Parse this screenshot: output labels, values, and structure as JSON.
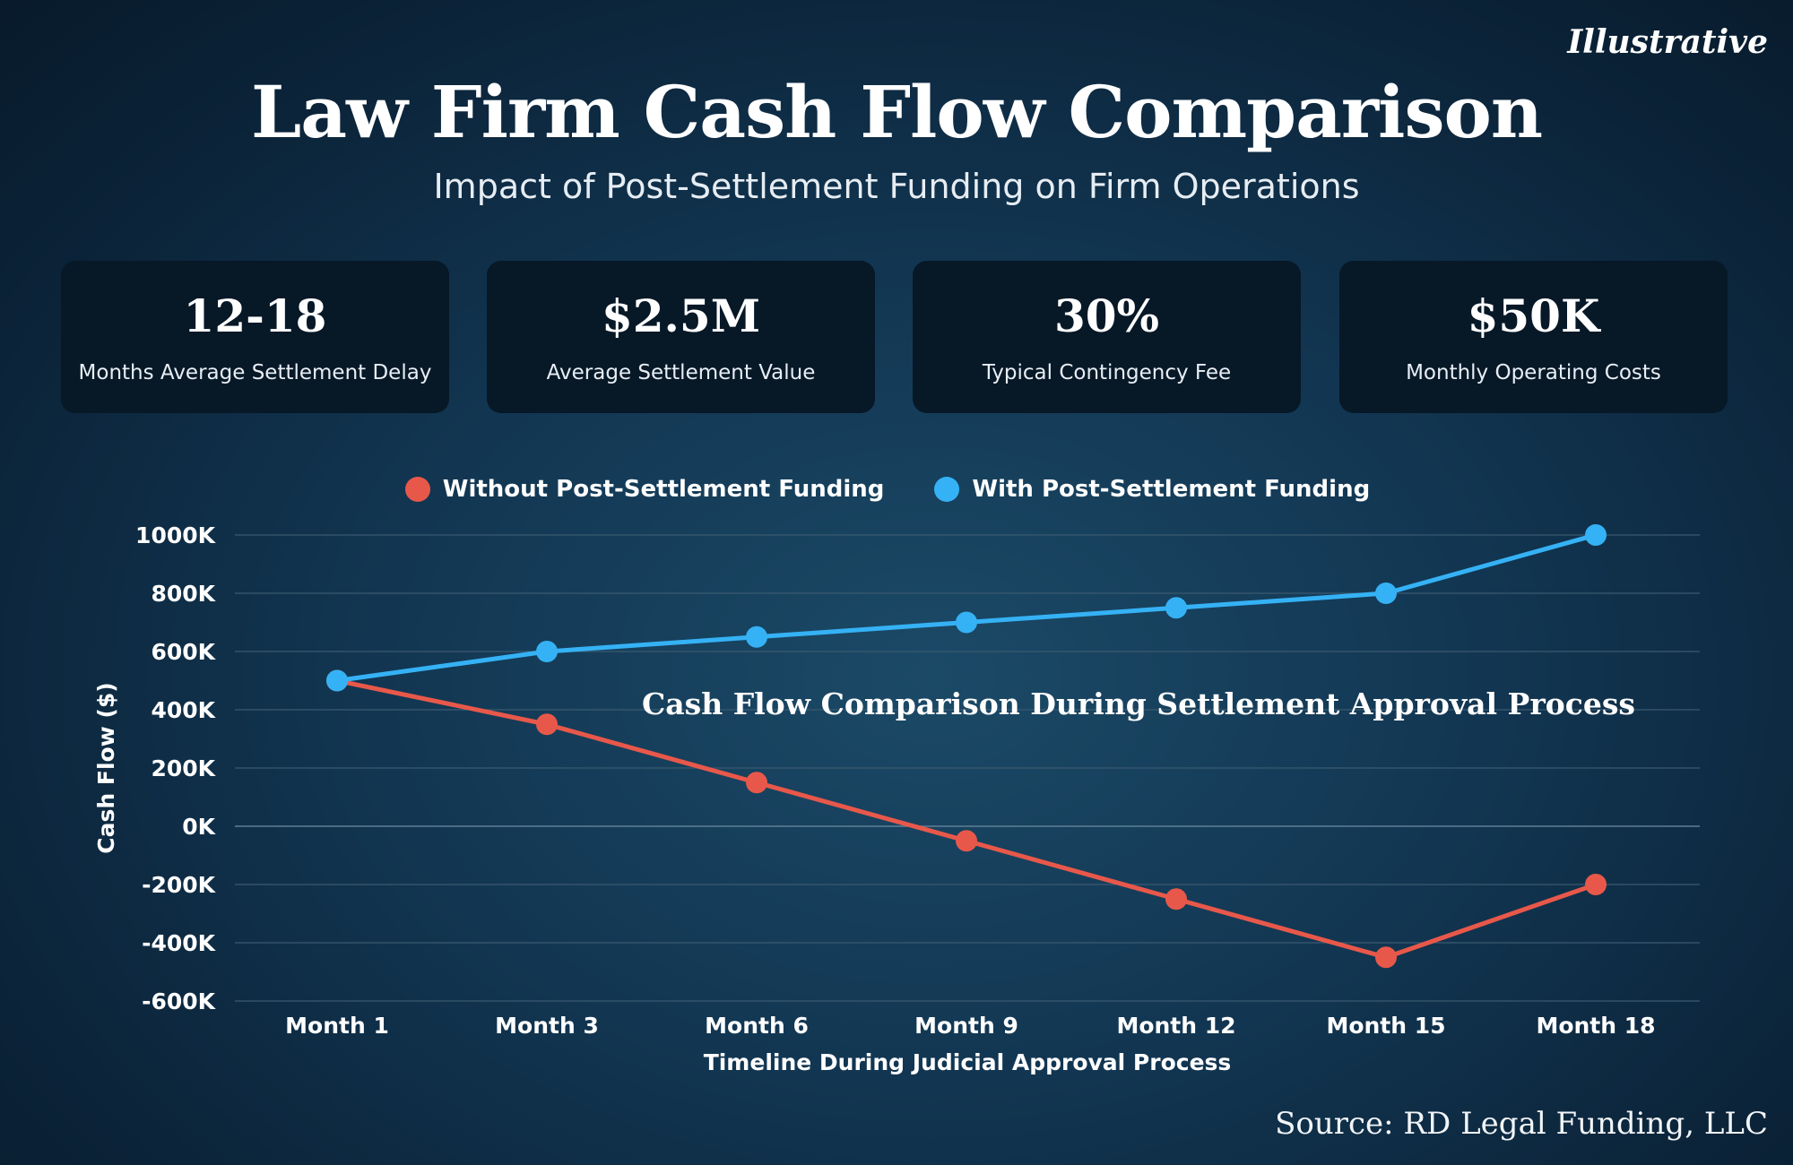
{
  "tag": "Illustrative",
  "title": "Law Firm Cash Flow Comparison",
  "subtitle": "Impact of Post-Settlement Funding on Firm Operations",
  "stats": [
    {
      "value": "12-18",
      "label": "Months Average Settlement Delay"
    },
    {
      "value": "$2.5M",
      "label": "Average Settlement Value"
    },
    {
      "value": "30%",
      "label": "Typical Contingency Fee"
    },
    {
      "value": "$50K",
      "label": "Monthly Operating Costs"
    }
  ],
  "colors": {
    "without": "#e8584a",
    "with": "#35b2f5"
  },
  "chart_data": {
    "type": "line",
    "title": "Cash Flow Comparison During Settlement Approval Process",
    "xlabel": "Timeline During Judicial Approval Process",
    "ylabel": "Cash Flow ($)",
    "categories": [
      "Month 1",
      "Month 3",
      "Month 6",
      "Month 9",
      "Month 12",
      "Month 15",
      "Month 18"
    ],
    "ylim": [
      -600000,
      1000000
    ],
    "yticks": [
      -600000,
      -400000,
      -200000,
      0,
      200000,
      400000,
      600000,
      800000,
      1000000
    ],
    "ytick_labels": [
      "-600K",
      "-400K",
      "-200K",
      "0K",
      "200K",
      "400K",
      "600K",
      "800K",
      "1000K"
    ],
    "grid": true,
    "legend_position": "top-center",
    "series": [
      {
        "name": "Without Post-Settlement Funding",
        "color_key": "without",
        "values": [
          500000,
          350000,
          150000,
          -50000,
          -250000,
          -450000,
          -200000
        ]
      },
      {
        "name": "With Post-Settlement Funding",
        "color_key": "with",
        "values": [
          500000,
          600000,
          650000,
          700000,
          750000,
          800000,
          1000000
        ]
      }
    ]
  },
  "source": "Source: RD Legal Funding, LLC"
}
